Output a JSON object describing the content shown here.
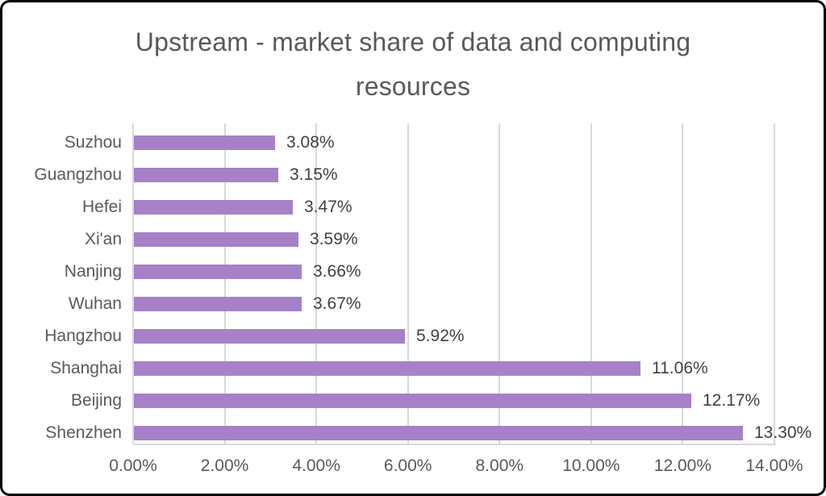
{
  "frame": {
    "border_color": "#000000",
    "background_color": "#ffffff"
  },
  "chart_data": {
    "type": "bar",
    "orientation": "horizontal",
    "title": "Upstream - market share of data and computing resources",
    "title_lines": [
      "Upstream - market share of data and computing",
      "resources"
    ],
    "categories_top_to_bottom": [
      "Suzhou",
      "Guangzhou",
      "Hefei",
      "Xi'an",
      "Nanjing",
      "Wuhan",
      "Hangzhou",
      "Shanghai",
      "Beijing",
      "Shenzhen"
    ],
    "values_percent": [
      3.08,
      3.15,
      3.47,
      3.59,
      3.66,
      3.67,
      5.92,
      11.06,
      12.17,
      13.3
    ],
    "data_labels": [
      "3.08%",
      "3.15%",
      "3.47%",
      "3.59%",
      "3.66%",
      "3.67%",
      "5.92%",
      "11.06%",
      "12.17%",
      "13.30%"
    ],
    "x_axis": {
      "min": 0,
      "max": 14,
      "tick_values": [
        0,
        2,
        4,
        6,
        8,
        10,
        12,
        14
      ],
      "tick_labels": [
        "0.00%",
        "2.00%",
        "4.00%",
        "6.00%",
        "8.00%",
        "10.00%",
        "12.00%",
        "14.00%"
      ]
    },
    "legend": "none",
    "grid": "vertical-only",
    "colors": {
      "bar": "#a681c7",
      "gridline": "#d9d9d9",
      "axis_line": "#d9d9d9",
      "title_text": "#595959",
      "category_text": "#595959",
      "tick_text": "#595959",
      "value_label_text": "#404040"
    }
  }
}
